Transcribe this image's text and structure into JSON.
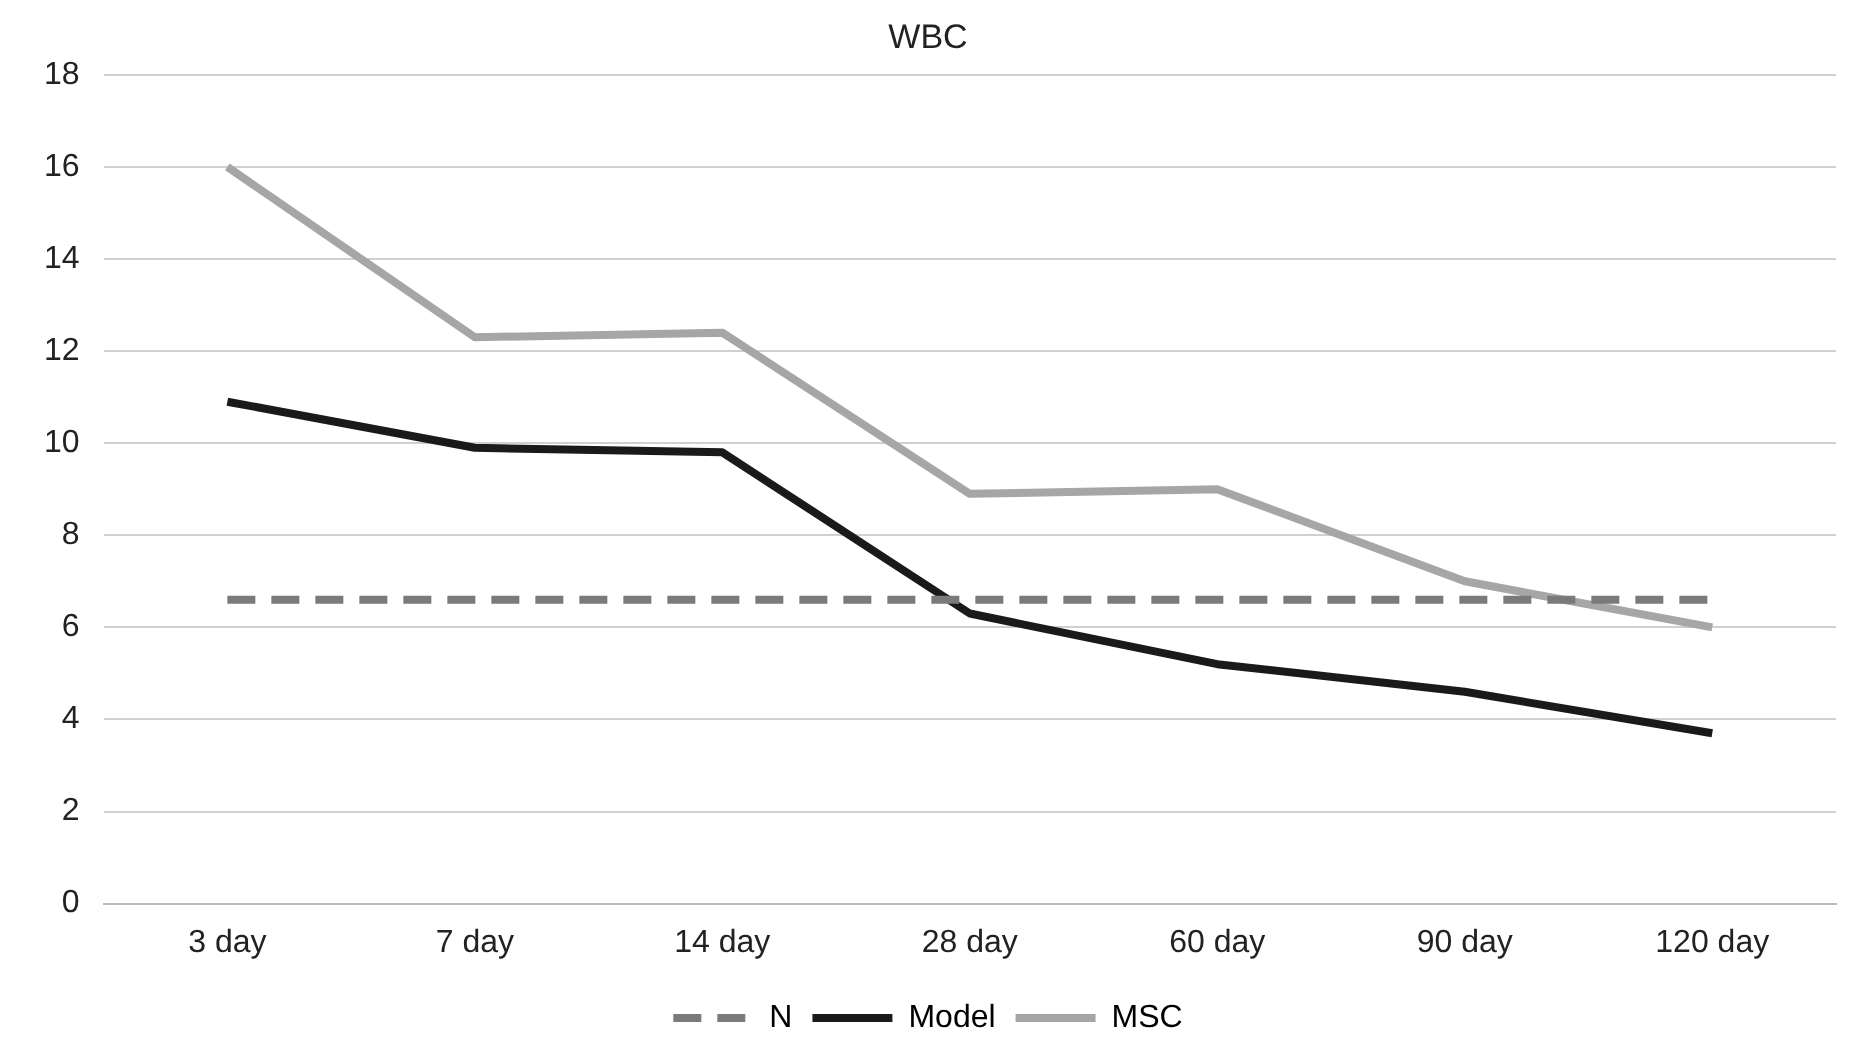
{
  "chart_data": {
    "type": "line",
    "title": "WBC",
    "categories": [
      "3 day",
      "7 day",
      "14 day",
      "28 day",
      "60 day",
      "90 day",
      "120 day"
    ],
    "series": [
      {
        "name": "N",
        "color": "#7a7a7a",
        "line_style": "dashed",
        "values": [
          6.6,
          6.6,
          6.6,
          6.6,
          6.6,
          6.6,
          6.6
        ]
      },
      {
        "name": "Model",
        "color": "#1a1a1a",
        "line_style": "solid",
        "values": [
          10.9,
          9.9,
          9.8,
          6.3,
          5.2,
          4.6,
          3.7
        ]
      },
      {
        "name": "MSC",
        "color": "#a6a6a6",
        "line_style": "solid",
        "values": [
          16,
          12.3,
          12.4,
          8.9,
          9,
          7,
          6
        ]
      }
    ],
    "ylim": [
      0,
      18
    ],
    "yticks": [
      0,
      2,
      4,
      6,
      8,
      10,
      12,
      14,
      16,
      18
    ],
    "grid": "y",
    "legend": "bottom",
    "marker": "none"
  }
}
